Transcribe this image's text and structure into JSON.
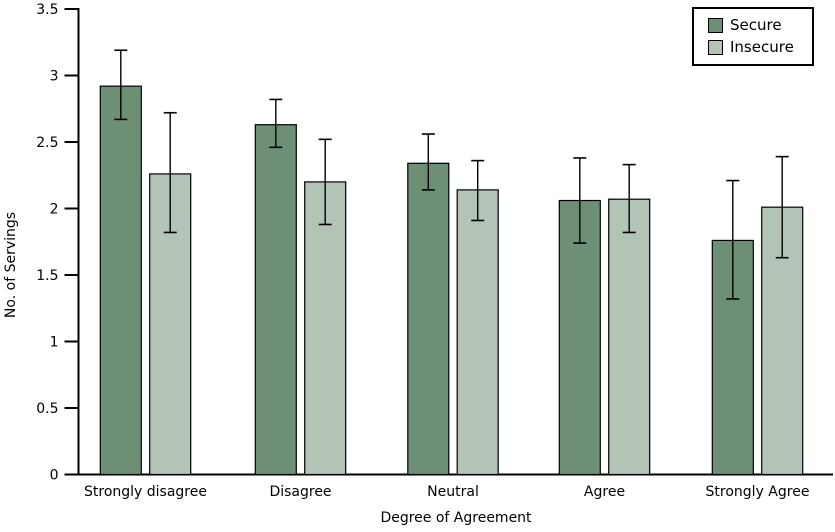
{
  "chart_data": {
    "type": "bar",
    "title": "",
    "xlabel": "Degree of Agreement",
    "ylabel": "No. of Servings",
    "categories": [
      "Strongly disagree",
      "Disagree",
      "Neutral",
      "Agree",
      "Strongly Agree"
    ],
    "series": [
      {
        "name": "Secure",
        "color": "#6C8F76",
        "values": [
          2.92,
          2.63,
          2.34,
          2.06,
          1.76
        ],
        "ci_low": [
          2.67,
          2.46,
          2.14,
          1.74,
          1.32
        ],
        "ci_high": [
          3.19,
          2.82,
          2.56,
          2.38,
          2.21
        ]
      },
      {
        "name": "Insecure",
        "color": "#B3C4B6",
        "values": [
          2.26,
          2.2,
          2.14,
          2.07,
          2.01
        ],
        "ci_low": [
          1.82,
          1.88,
          1.91,
          1.82,
          1.63
        ],
        "ci_high": [
          2.72,
          2.52,
          2.36,
          2.33,
          2.39
        ]
      }
    ],
    "ylim": [
      0,
      3.5
    ],
    "ytick_step": 0.5,
    "yticks": [
      "0",
      "0.5",
      "1",
      "1.5",
      "2",
      "2.5",
      "3",
      "3.5"
    ],
    "grid": false,
    "error_bars": true,
    "legend_position": "top-right",
    "axis_color": "#000000",
    "bar_edge_color": "#000000",
    "background_color": "#FFFFFF"
  }
}
